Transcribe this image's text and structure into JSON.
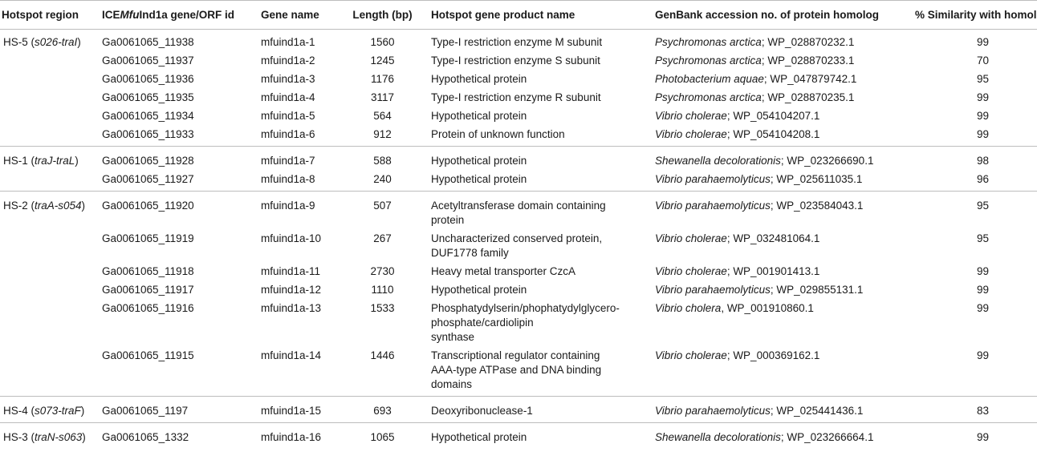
{
  "headers": {
    "hotspot": "Hotspot region",
    "gene_id_pre": "ICE",
    "gene_id_italic": "Mfu",
    "gene_id_post": "Ind1a gene/ORF id",
    "gene_name": "Gene name",
    "length": "Length (bp)",
    "product": "Hotspot gene product name",
    "accession": "GenBank accession no. of protein homolog",
    "similarity": "% Similarity with homolog"
  },
  "groups": [
    {
      "region": "HS-5",
      "region_italic": "s026-traI",
      "rows": [
        {
          "id": "Ga0061065_11938",
          "name": "mfuind1a-1",
          "length": "1560",
          "product": "Type-I restriction enzyme M subunit",
          "species": "Psychromonas arctica",
          "acc": "; WP_028870232.1",
          "sim": "99"
        },
        {
          "id": "Ga0061065_11937",
          "name": "mfuind1a-2",
          "length": "1245",
          "product": "Type-I restriction enzyme S subunit",
          "species": "Psychromonas arctica",
          "acc": "; WP_028870233.1",
          "sim": "70"
        },
        {
          "id": "Ga0061065_11936",
          "name": "mfuind1a-3",
          "length": "1176",
          "product": "Hypothetical protein",
          "species": "Photobacterium aquae",
          "acc": "; WP_047879742.1",
          "sim": "95"
        },
        {
          "id": "Ga0061065_11935",
          "name": "mfuind1a-4",
          "length": "3117",
          "product": "Type-I restriction enzyme R subunit",
          "species": "Psychromonas arctica",
          "acc": "; WP_028870235.1",
          "sim": "99"
        },
        {
          "id": "Ga0061065_11934",
          "name": "mfuind1a-5",
          "length": "564",
          "product": "Hypothetical protein",
          "species": "Vibrio cholerae",
          "acc": "; WP_054104207.1",
          "sim": "99"
        },
        {
          "id": "Ga0061065_11933",
          "name": "mfuind1a-6",
          "length": "912",
          "product": "Protein of unknown function",
          "species": "Vibrio cholerae",
          "acc": "; WP_054104208.1",
          "sim": "99"
        }
      ]
    },
    {
      "region": "HS-1",
      "region_italic": "traJ-traL",
      "rows": [
        {
          "id": "Ga0061065_11928",
          "name": "mfuind1a-7",
          "length": "588",
          "product": "Hypothetical protein",
          "species": "Shewanella decolorationis",
          "acc": "; WP_023266690.1",
          "sim": "98"
        },
        {
          "id": "Ga0061065_11927",
          "name": "mfuind1a-8",
          "length": "240",
          "product": "Hypothetical protein",
          "species": "Vibrio parahaemolyticus",
          "acc": "; WP_025611035.1",
          "sim": "96"
        }
      ]
    },
    {
      "region": "HS-2",
      "region_italic": "traA-s054",
      "rows": [
        {
          "id": "Ga0061065_11920",
          "name": "mfuind1a-9",
          "length": "507",
          "product": "Acetyltransferase domain containing\nprotein",
          "species": "Vibrio parahaemolyticus",
          "acc": "; WP_023584043.1",
          "sim": "95"
        },
        {
          "id": "Ga0061065_11919",
          "name": "mfuind1a-10",
          "length": "267",
          "product": "Uncharacterized conserved protein,\nDUF1778 family",
          "species": "Vibrio cholerae",
          "acc": "; WP_032481064.1",
          "sim": "95"
        },
        {
          "id": "Ga0061065_11918",
          "name": "mfuind1a-11",
          "length": "2730",
          "product": "Heavy metal transporter CzcA",
          "species": "Vibrio cholerae",
          "acc": "; WP_001901413.1",
          "sim": "99"
        },
        {
          "id": "Ga0061065_11917",
          "name": "mfuind1a-12",
          "length": "1110",
          "product": "Hypothetical protein",
          "species": "Vibrio parahaemolyticus",
          "acc": "; WP_029855131.1",
          "sim": "99"
        },
        {
          "id": "Ga0061065_11916",
          "name": "mfuind1a-13",
          "length": "1533",
          "product": "Phosphatydylserin/phophatydylglycero-\nphosphate/cardiolipin\nsynthase",
          "species": "Vibrio cholera",
          "acc": ", WP_001910860.1",
          "sim": "99"
        },
        {
          "id": "Ga0061065_11915",
          "name": "mfuind1a-14",
          "length": "1446",
          "product": "Transcriptional regulator containing\nAAA-type ATPase and DNA binding\ndomains",
          "species": "Vibrio cholerae",
          "acc": "; WP_000369162.1",
          "sim": "99"
        }
      ]
    },
    {
      "region": "HS-4",
      "region_italic": "s073-traF",
      "rows": [
        {
          "id": "Ga0061065_1197",
          "name": "mfuind1a-15",
          "length": "693",
          "product": "Deoxyribonuclease-1",
          "species": "Vibrio parahaemolyticus",
          "acc": "; WP_025441436.1",
          "sim": "83"
        }
      ]
    },
    {
      "region": "HS-3",
      "region_italic": "traN-s063",
      "rows": [
        {
          "id": "Ga0061065_1332",
          "name": "mfuind1a-16",
          "length": "1065",
          "product": "Hypothetical protein",
          "species": "Shewanella decolorationis",
          "acc": "; WP_023266664.1",
          "sim": "99"
        }
      ]
    }
  ]
}
